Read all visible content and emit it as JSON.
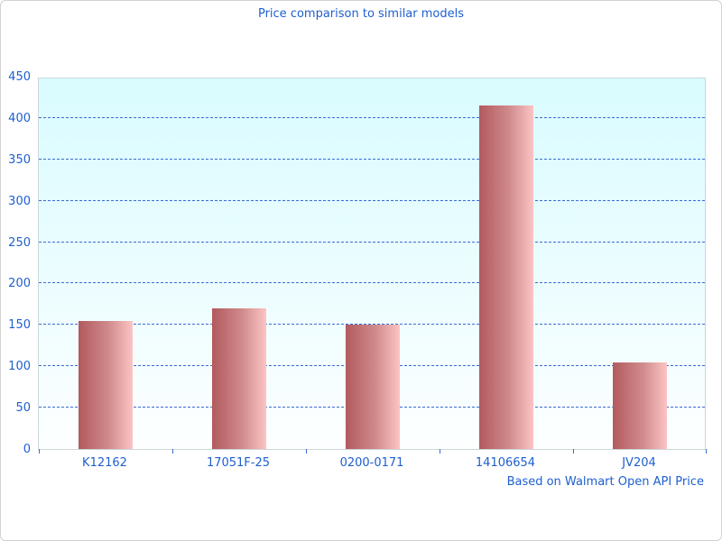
{
  "chart_data": {
    "type": "bar",
    "title": "Price comparison to similar models",
    "footnote": "Based on Walmart Open API Price",
    "categories": [
      "K12162",
      "17051F-25",
      "0200-0171",
      "14106654",
      "JV204"
    ],
    "values": [
      155,
      170,
      150,
      415,
      105
    ],
    "xlabel": "",
    "ylabel": "",
    "ylim": [
      0,
      450
    ],
    "yticks": [
      0,
      50,
      100,
      150,
      200,
      250,
      300,
      350,
      400,
      450
    ],
    "grid": "horizontal-dashed",
    "legend_position": "none",
    "colors": {
      "text": "#1e5fd0",
      "gridline": "#3a6bd4",
      "bar_gradient_left": "#b25a5e",
      "bar_gradient_right": "#fcc4c4",
      "plot_background_top": "#d9fcff",
      "plot_background_bottom": "#fdffff",
      "plot_border": "#ccd6da"
    }
  }
}
